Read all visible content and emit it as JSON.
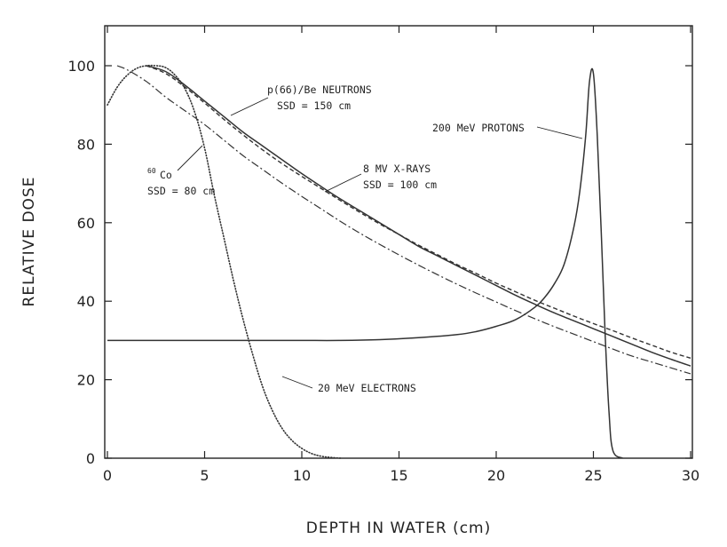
{
  "chart_data": {
    "type": "line",
    "title": "",
    "xlabel": "DEPTH IN WATER (cm)",
    "ylabel": "RELATIVE DOSE",
    "xlim": [
      0,
      30
    ],
    "ylim": [
      0,
      110
    ],
    "x_ticks": [
      0,
      5,
      10,
      15,
      20,
      25,
      30
    ],
    "y_ticks": [
      0,
      20,
      40,
      60,
      80,
      100
    ],
    "grid": false,
    "legend": "none",
    "series": [
      {
        "name": "p(66)/Be NEUTRONS",
        "style": "solid",
        "x": [
          2,
          3,
          4,
          5,
          6,
          7,
          8,
          9,
          10,
          11,
          12,
          13,
          14,
          15,
          16,
          17,
          18,
          19,
          20,
          21,
          22,
          23,
          24,
          25,
          26,
          27,
          28,
          29,
          30
        ],
        "y": [
          100,
          98.5,
          95,
          91,
          87,
          83,
          79.5,
          76,
          72.5,
          69.2,
          66,
          63,
          60,
          57,
          54,
          51.5,
          49,
          46.5,
          44,
          41.5,
          39.2,
          37,
          35,
          33,
          31,
          29,
          27,
          25.2,
          23.5
        ]
      },
      {
        "name": "8 MV X-RAYS",
        "style": "dashed",
        "x": [
          2,
          3,
          4,
          5,
          6,
          7,
          8,
          9,
          10,
          11,
          12,
          13,
          14,
          15,
          16,
          17,
          18,
          19,
          20,
          21,
          22,
          23,
          24,
          25,
          26,
          27,
          28,
          29,
          30
        ],
        "y": [
          100,
          98,
          94.5,
          90.5,
          86.3,
          82.3,
          78.5,
          75,
          71.8,
          68.7,
          65.6,
          62.6,
          59.7,
          57,
          54.3,
          51.8,
          49.3,
          47,
          44.6,
          42.4,
          40.2,
          38.2,
          36.2,
          34.3,
          32.5,
          30.6,
          28.8,
          27,
          25.5
        ]
      },
      {
        "name": "60Co",
        "style": "dashdot",
        "x": [
          0.5,
          1,
          2,
          3,
          4,
          5,
          6,
          7,
          8,
          9,
          10,
          11,
          12,
          13,
          14,
          15,
          16,
          17,
          18,
          19,
          20,
          21,
          22,
          23,
          24,
          25,
          26,
          27,
          28,
          29,
          30
        ],
        "y": [
          100,
          99,
          96,
          92,
          88.5,
          85,
          81,
          77,
          73.5,
          70,
          66.7,
          63.5,
          60.3,
          57.3,
          54.5,
          51.8,
          49.2,
          46.7,
          44.3,
          42,
          39.8,
          37.6,
          35.5,
          33.5,
          31.6,
          29.7,
          27.8,
          26,
          24.5,
          23,
          21.5
        ]
      },
      {
        "name": "20 MeV ELECTRONS",
        "style": "dotted",
        "x": [
          0,
          0.5,
          1,
          1.5,
          2,
          2.5,
          3,
          3.5,
          4,
          4.5,
          5,
          5.5,
          6,
          6.5,
          7,
          7.5,
          8,
          8.5,
          9,
          9.5,
          10,
          10.5,
          11,
          11.5,
          12
        ],
        "y": [
          90,
          94.5,
          97.5,
          99.3,
          100,
          100,
          99.5,
          97.5,
          94,
          88,
          79,
          67,
          56,
          45,
          35,
          26,
          18,
          12,
          7.5,
          4.5,
          2.5,
          1.2,
          0.5,
          0.2,
          0
        ]
      },
      {
        "name": "200 MeV PROTONS",
        "style": "solid",
        "x": [
          0,
          2,
          4,
          6,
          8,
          10,
          12,
          14,
          16,
          18,
          19,
          20,
          21,
          22,
          22.5,
          23,
          23.5,
          24,
          24.3,
          24.6,
          24.8,
          25,
          25.2,
          25.4,
          25.6,
          25.8,
          26,
          26.5
        ],
        "y": [
          30,
          30,
          30,
          30,
          30,
          30,
          30,
          30.2,
          30.7,
          31.5,
          32.3,
          33.6,
          35.3,
          38.5,
          41,
          44.5,
          49.5,
          59,
          68,
          82,
          96,
          98,
          82,
          58,
          32,
          12,
          2,
          0
        ]
      }
    ],
    "annotations": {
      "neutrons_line1": "p(66)/Be NEUTRONS",
      "neutrons_line2": "SSD = 150 cm",
      "xray_line1": "8 MV X-RAYS",
      "xray_line2": "SSD = 100 cm",
      "cobalt_mass": "60",
      "cobalt_symbol": "Co",
      "cobalt_line2": "SSD = 80 cm",
      "protons": "200 MeV PROTONS",
      "electrons": "20 MeV ELECTRONS"
    }
  }
}
